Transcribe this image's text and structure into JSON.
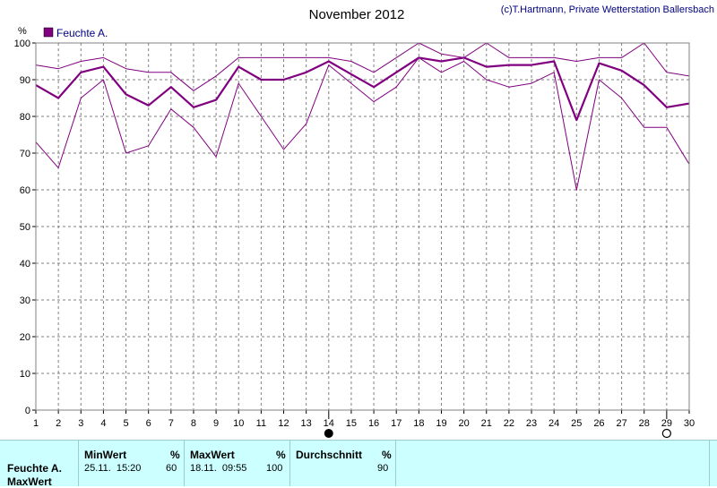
{
  "chart_data": {
    "type": "line",
    "title": "November 2012",
    "credit": "(c)T.Hartmann, Private Wetterstation Ballersbach",
    "ylabel": "%",
    "ylim": [
      0,
      100
    ],
    "yticks": [
      0,
      10,
      20,
      30,
      40,
      50,
      60,
      70,
      80,
      90,
      100
    ],
    "x": [
      1,
      2,
      3,
      4,
      5,
      6,
      7,
      8,
      9,
      10,
      11,
      12,
      13,
      14,
      15,
      16,
      17,
      18,
      19,
      20,
      21,
      22,
      23,
      24,
      25,
      26,
      27,
      28,
      29,
      30
    ],
    "legend": "Feuchte A.",
    "color": "#800080",
    "series": [
      {
        "name": "Feuchte A.",
        "role": "mean",
        "values": [
          88.5,
          85,
          92,
          93.5,
          86,
          83,
          88,
          82.5,
          84.5,
          93.5,
          90,
          90,
          92,
          95,
          91.5,
          88,
          92,
          96,
          95,
          96,
          93.5,
          94,
          94,
          95,
          79,
          94.5,
          92.5,
          88.5,
          82.5,
          83.5
        ]
      },
      {
        "role": "max",
        "values": [
          94,
          93,
          95,
          96,
          93,
          92,
          92,
          87,
          91,
          96,
          96,
          96,
          96,
          96,
          95,
          92,
          96,
          100,
          97,
          96,
          100,
          96,
          96,
          96,
          95,
          96,
          96,
          100,
          92,
          91
        ]
      },
      {
        "role": "min",
        "values": [
          73,
          66,
          85,
          90,
          70,
          72,
          82,
          77,
          69,
          89,
          80,
          71,
          78,
          94,
          89,
          84,
          88,
          96,
          92,
          95,
          90,
          88,
          89,
          92,
          60,
          90,
          85,
          77,
          77,
          67
        ]
      }
    ],
    "markers": {
      "full_moon": 14,
      "new_moon": 29
    }
  },
  "stats": {
    "row_label": "Feuchte A.",
    "row_label2": "MaxWert",
    "min": {
      "header": "MinWert",
      "unit": "%",
      "datetime": "25.11.  15:20",
      "value": "60"
    },
    "max": {
      "header": "MaxWert",
      "unit": "%",
      "datetime": "18.11.  09:55",
      "value": "100"
    },
    "avg": {
      "header": "Durchschnitt",
      "unit": "%",
      "value": "90"
    }
  }
}
